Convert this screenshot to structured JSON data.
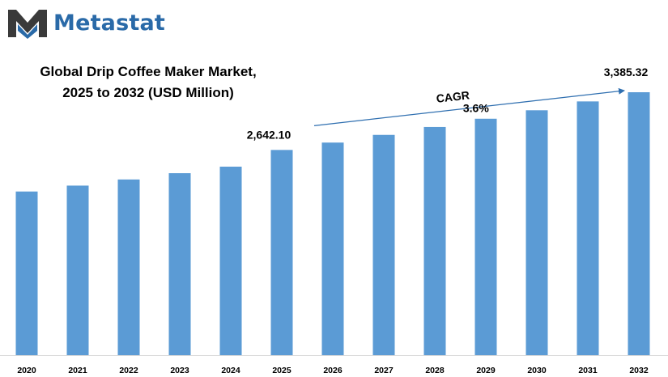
{
  "brand": {
    "name": "Metastat",
    "color": "#2a6aa8"
  },
  "title": {
    "line1": "Global Drip Coffee Maker Market,",
    "line2": "2025 to 2032 (USD Million)"
  },
  "chart_data": {
    "type": "bar",
    "title": "Global Drip Coffee Maker Market, 2025 to 2032 (USD Million)",
    "categories": [
      "2020",
      "2021",
      "2022",
      "2023",
      "2024",
      "2025",
      "2026",
      "2027",
      "2028",
      "2029",
      "2030",
      "2031",
      "2032"
    ],
    "values": [
      2107,
      2183,
      2262,
      2343,
      2427,
      2642.1,
      2737,
      2836,
      2938,
      3044,
      3153,
      3267,
      3385.32
    ],
    "data_labels": [
      {
        "category": "2025",
        "text": "2,642.10"
      },
      {
        "category": "2032",
        "text": "3,385.32"
      }
    ],
    "annotation": {
      "label": "CAGR",
      "value": "3.6%",
      "from": "2025",
      "to": "2032"
    },
    "bar_color": "#5b9bd5",
    "ylim": [
      0,
      3700
    ],
    "xlabel": "",
    "ylabel": "",
    "grid": false,
    "legend": "none"
  }
}
